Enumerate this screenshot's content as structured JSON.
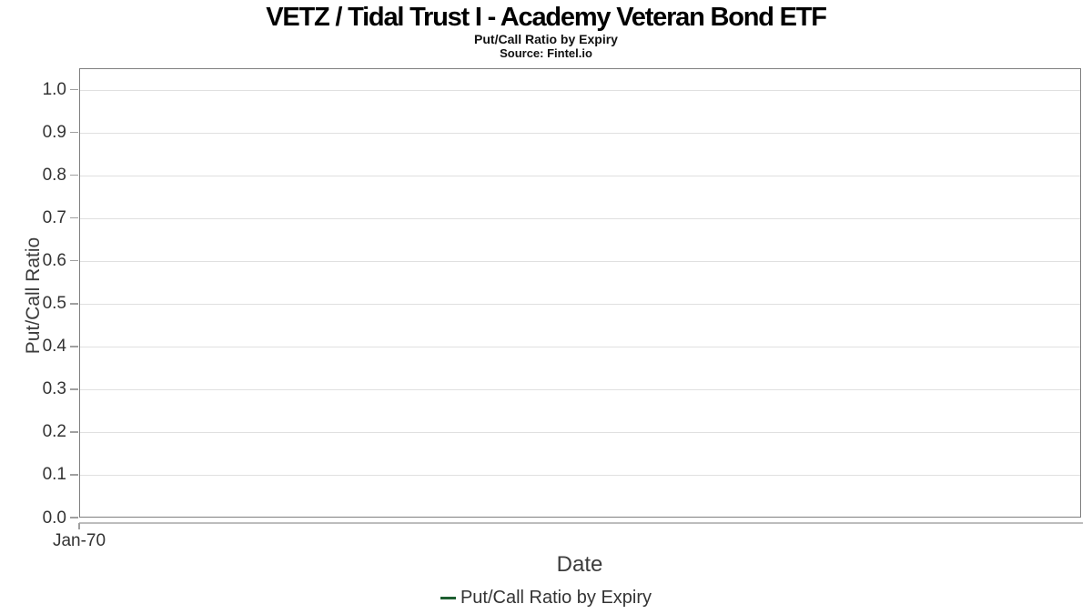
{
  "chart_data": {
    "type": "line",
    "title": "VETZ / Tidal Trust I - Academy Veteran Bond ETF",
    "subtitle": "Put/Call Ratio by Expiry",
    "source": "Source: Fintel.io",
    "xlabel": "Date",
    "ylabel": "Put/Call Ratio",
    "ylim": [
      0.0,
      1.05
    ],
    "yticks": [
      0.0,
      0.1,
      0.2,
      0.3,
      0.4,
      0.5,
      0.6,
      0.7,
      0.8,
      0.9,
      1.0
    ],
    "xticks": [
      "Jan-70"
    ],
    "grid": true,
    "legend": {
      "position": "bottom-center",
      "entries": [
        "Put/Call Ratio by Expiry"
      ]
    },
    "series": [
      {
        "name": "Put/Call Ratio by Expiry",
        "color": "#1e5f31",
        "x": [],
        "y": []
      }
    ],
    "colors": {
      "plot_border": "#7f7f7f",
      "gridline": "#e0e0e0",
      "tick_label": "#333333",
      "axis_label": "#3c3c3c",
      "title": "#000000",
      "background": "#ffffff"
    }
  }
}
